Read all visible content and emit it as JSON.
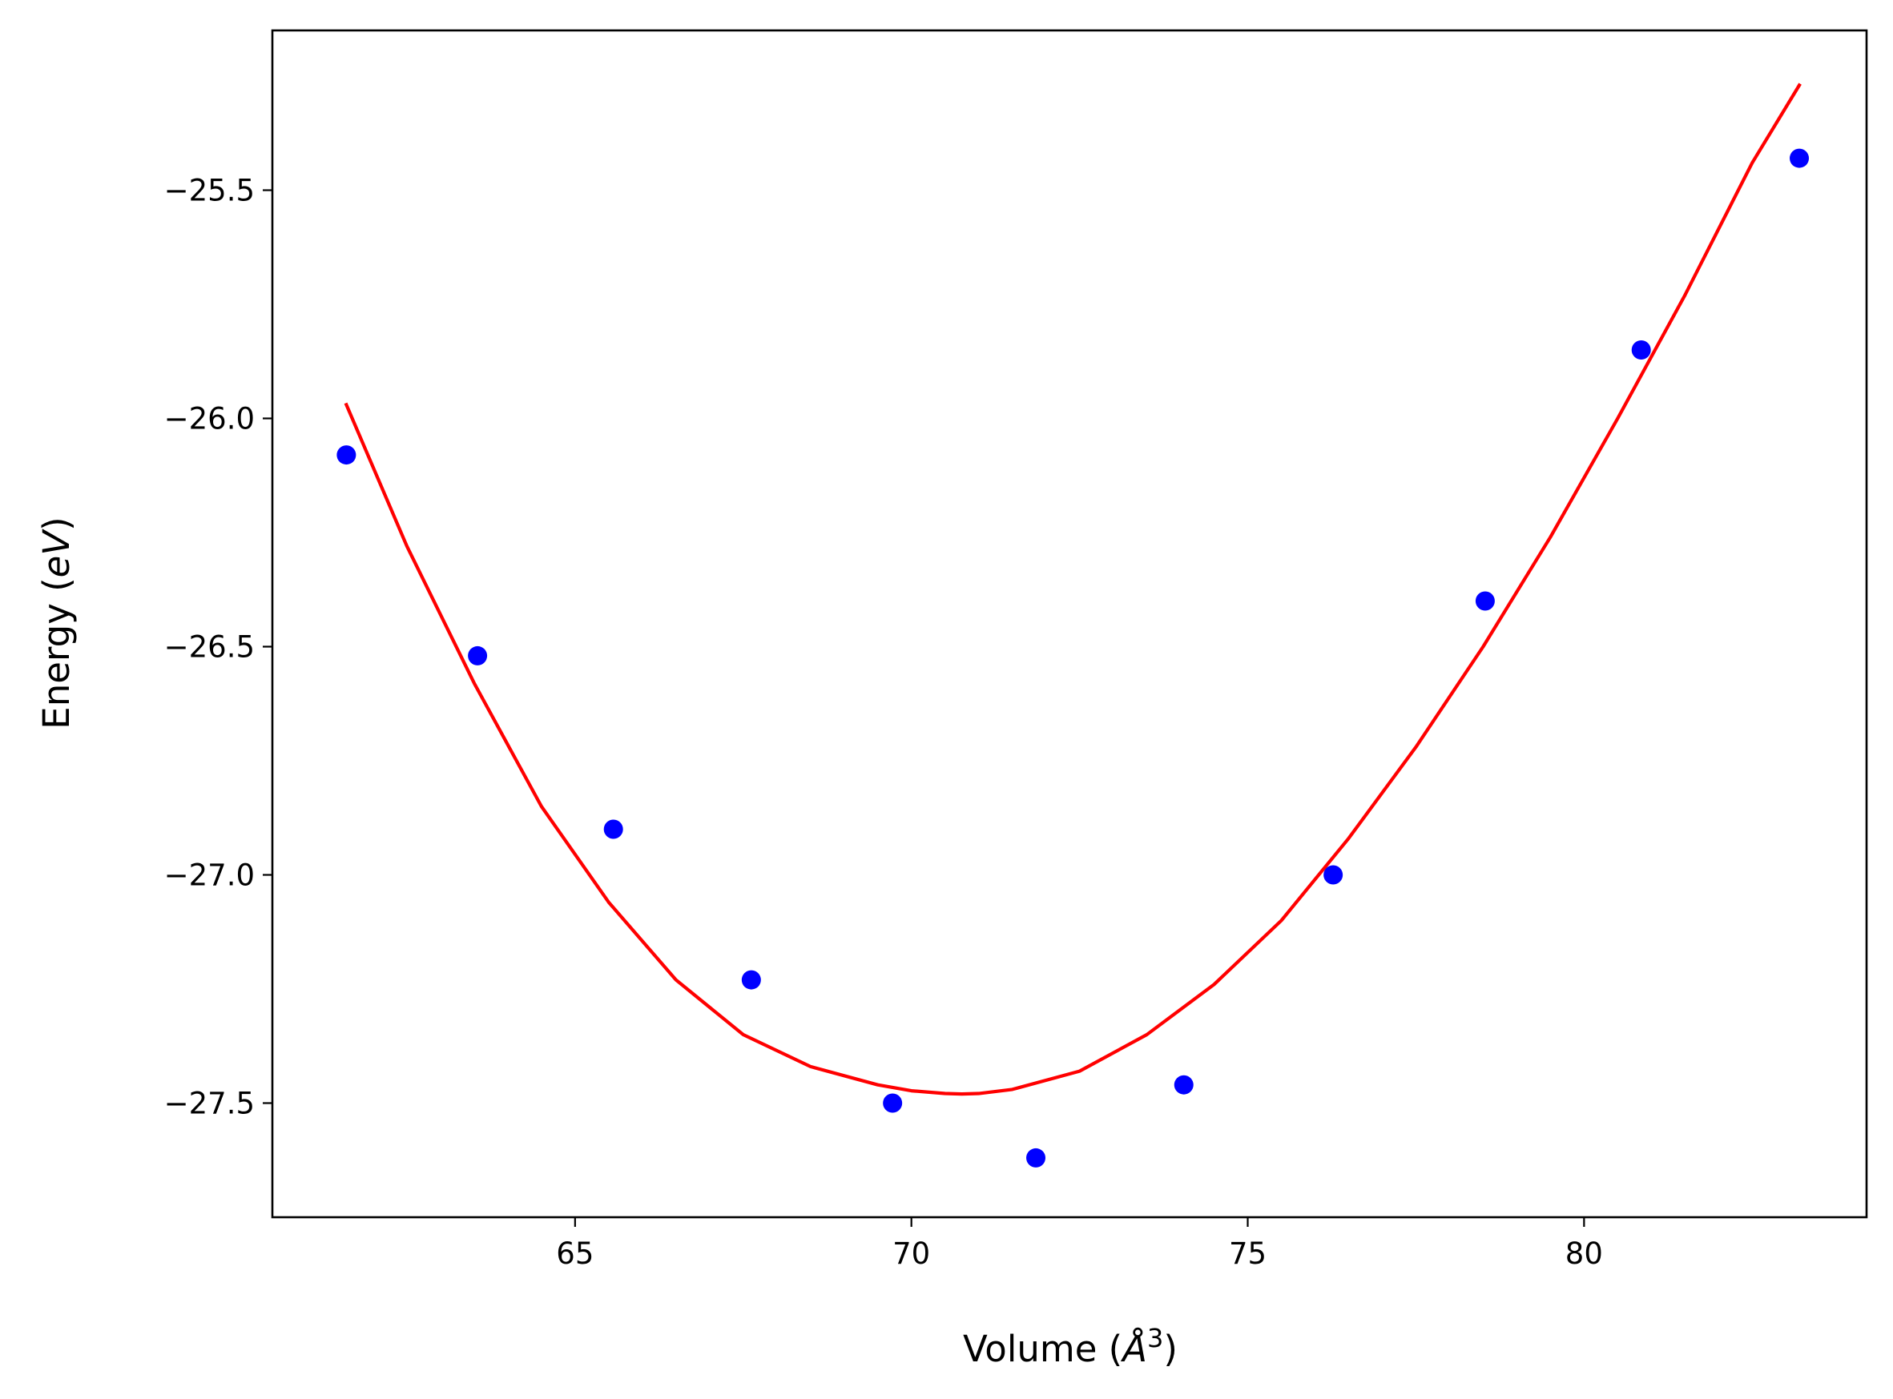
{
  "chart_data": {
    "type": "scatter",
    "title": "",
    "xlabel_text": "Volume (",
    "xlabel_math": "Å",
    "xlabel_sup": "3",
    "xlabel_close": ")",
    "ylabel_text": "Energy (",
    "ylabel_math": "eV",
    "ylabel_close": ")",
    "xlim": [
      60.5,
      84.2
    ],
    "ylim": [
      -27.75,
      -25.15
    ],
    "xticks": [
      65,
      70,
      75,
      80
    ],
    "xtick_labels": [
      "65",
      "70",
      "75",
      "80"
    ],
    "yticks": [
      -25.5,
      -26.0,
      -26.5,
      -27.0,
      -27.5
    ],
    "ytick_labels": [
      "−25.5",
      "−26.0",
      "−26.5",
      "−27.0",
      "−27.5"
    ],
    "grid": false,
    "series": [
      {
        "kind": "scatter",
        "color": "#0000ff",
        "x": [
          61.6,
          63.55,
          65.57,
          67.62,
          69.72,
          71.85,
          74.05,
          76.27,
          78.53,
          80.85,
          83.2
        ],
        "y": [
          -26.08,
          -26.52,
          -26.9,
          -27.23,
          -27.5,
          -27.62,
          -27.46,
          -27.0,
          -26.4,
          -25.85,
          -25.43
        ]
      },
      {
        "kind": "line",
        "color": "#ff0000",
        "x": [
          61.6,
          62.5,
          63.5,
          64.5,
          65.5,
          66.5,
          67.5,
          68.5,
          69.5,
          70.0,
          70.5,
          70.75,
          71.0,
          71.5,
          72.5,
          73.5,
          74.5,
          75.5,
          76.5,
          77.5,
          78.5,
          79.5,
          80.5,
          81.5,
          82.5,
          83.2
        ],
        "y": [
          -25.97,
          -26.28,
          -26.58,
          -26.85,
          -27.06,
          -27.23,
          -27.35,
          -27.42,
          -27.46,
          -27.473,
          -27.479,
          -27.48,
          -27.479,
          -27.47,
          -27.43,
          -27.35,
          -27.24,
          -27.1,
          -26.92,
          -26.72,
          -26.5,
          -26.26,
          -26.0,
          -25.73,
          -25.44,
          -25.27
        ]
      }
    ]
  }
}
